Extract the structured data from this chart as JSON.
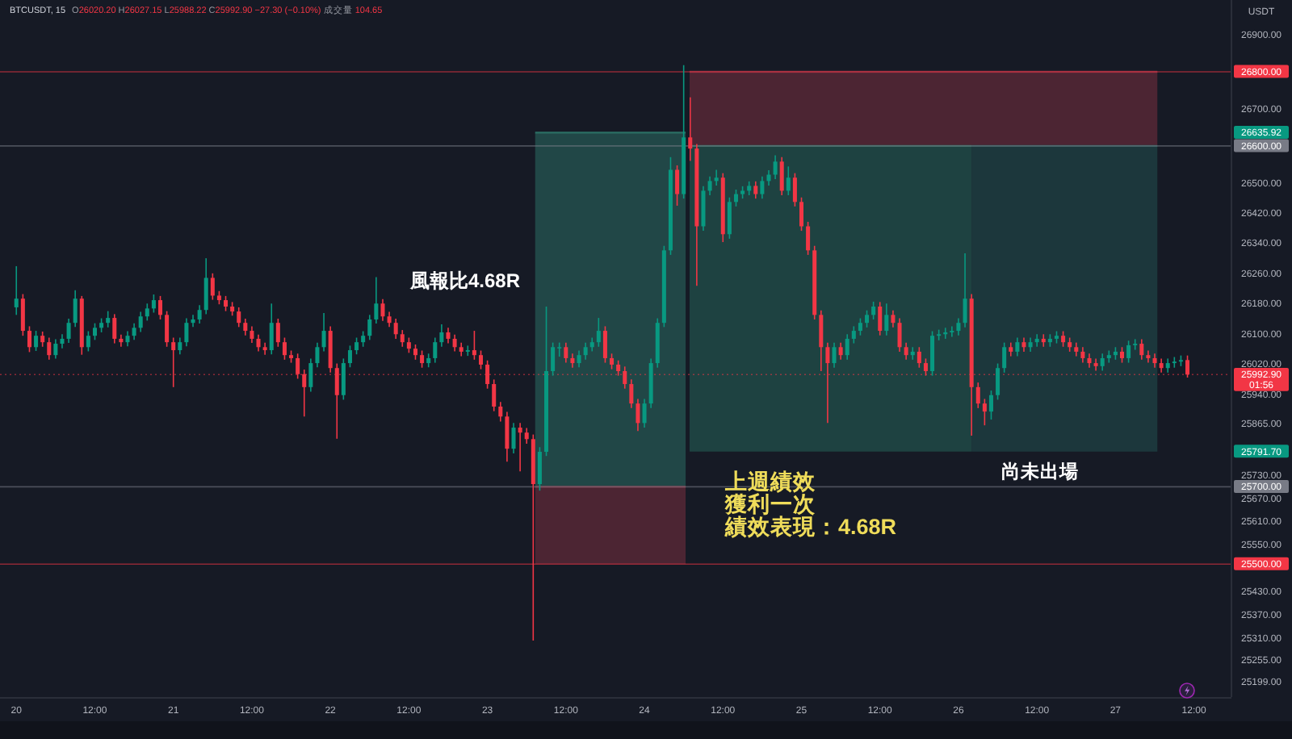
{
  "chart_data": {
    "type": "candlestick",
    "title": "BTCUSDT, 15",
    "subtitle": "O26020.20 H26027.15 L25988.22 C25992.90 −27.30 (−0.10%) 成交量 104.65",
    "ylabel": "USDT",
    "log": true,
    "xlim": [
      "--09-19T21:30",
      "--09-27T17:36"
    ],
    "xticks": [
      {
        "value": "--09-20T00:00",
        "label": "20"
      },
      {
        "value": "--09-20T12:00",
        "label": "12:00"
      },
      {
        "value": "--09-21T00:00",
        "label": "21"
      },
      {
        "value": "--09-21T12:00",
        "label": "12:00"
      },
      {
        "value": "--09-22T00:00",
        "label": "22"
      },
      {
        "value": "--09-22T12:00",
        "label": "12:00"
      },
      {
        "value": "--09-23T00:00",
        "label": "23"
      },
      {
        "value": "--09-23T12:00",
        "label": "12:00"
      },
      {
        "value": "--09-24T00:00",
        "label": "24"
      },
      {
        "value": "--09-24T12:00",
        "label": "12:00"
      },
      {
        "value": "--09-25T00:00",
        "label": "25"
      },
      {
        "value": "--09-25T12:00",
        "label": "12:00"
      },
      {
        "value": "--09-26T00:00",
        "label": "26"
      },
      {
        "value": "--09-26T12:00",
        "label": "12:00"
      },
      {
        "value": "--09-27T00:00",
        "label": "27"
      },
      {
        "value": "--09-27T12:00",
        "label": "12:00"
      }
    ],
    "ylim": [
      25160,
      26995
    ],
    "yticks": [
      {
        "value": 26900,
        "label": "26900.00"
      },
      {
        "value": 26700,
        "label": "26700.00"
      },
      {
        "value": 26500,
        "label": "26500.00"
      },
      {
        "value": 26420,
        "label": "26420.00"
      },
      {
        "value": 26340,
        "label": "26340.00"
      },
      {
        "value": 26260,
        "label": "26260.00"
      },
      {
        "value": 26180,
        "label": "26180.00"
      },
      {
        "value": 26100,
        "label": "26100.00"
      },
      {
        "value": 26020,
        "label": "26020.00"
      },
      {
        "value": 25940,
        "label": "25940.00"
      },
      {
        "value": 25865,
        "label": "25865.00"
      },
      {
        "value": 25730,
        "label": "25730.00"
      },
      {
        "value": 25670,
        "label": "25670.00"
      },
      {
        "value": 25610,
        "label": "25610.00"
      },
      {
        "value": 25550,
        "label": "25550.00"
      },
      {
        "value": 25430,
        "label": "25430.00"
      },
      {
        "value": 25370,
        "label": "25370.00"
      },
      {
        "value": 25310,
        "label": "25310.00"
      },
      {
        "value": 25255,
        "label": "25255.00"
      },
      {
        "value": 25199,
        "label": "25199.00"
      }
    ],
    "series": [
      {
        "type": "line",
        "x": [
          "--09-23T07:18",
          "--09-24T06:18"
        ],
        "values": [
          26635.92,
          26635.92
        ],
        "lower": [
          25700,
          25700
        ],
        "upper": [
          26635.92,
          26635.92
        ],
        "color": "#2b6e64"
      },
      {
        "type": "line",
        "x": [
          "--09-23T07:18",
          "--09-24T06:18"
        ],
        "values": [
          25700,
          25700
        ],
        "lower": [
          25500,
          25500
        ],
        "upper": [
          25700,
          25700
        ],
        "color": "#7a2f40"
      },
      {
        "type": "line",
        "x": [
          "--09-24T06:54",
          "--09-27T06:24"
        ],
        "values": [
          26800,
          26800
        ],
        "lower": [
          26600,
          26600
        ],
        "upper": [
          26800,
          26800
        ],
        "color": "#7a2f40"
      },
      {
        "type": "line",
        "x": [
          "--09-24T06:54",
          "--09-26T02:00"
        ],
        "values": [
          26600,
          26600
        ],
        "lower": [
          25791.7,
          25791.7
        ],
        "upper": [
          26600,
          26600
        ],
        "color": "#276459"
      },
      {
        "type": "line",
        "x": [
          "--09-26T02:00",
          "--09-27T06:24"
        ],
        "values": [
          26600,
          26600
        ],
        "lower": [
          25791.7,
          25791.7
        ],
        "upper": [
          26600,
          26600
        ],
        "color": "#225150"
      },
      {
        "type": "candlestick",
        "x": [
          "--09-20T00:00",
          "--09-20T01:00",
          "--09-20T02:00",
          "--09-20T03:00",
          "--09-20T04:00",
          "--09-20T05:00",
          "--09-20T06:00",
          "--09-20T07:00",
          "--09-20T08:00",
          "--09-20T09:00",
          "--09-20T10:00",
          "--09-20T11:00",
          "--09-20T12:00",
          "--09-20T13:00",
          "--09-20T14:00",
          "--09-20T15:00",
          "--09-20T16:00",
          "--09-20T17:00",
          "--09-20T18:00",
          "--09-20T19:00",
          "--09-20T20:00",
          "--09-20T21:00",
          "--09-20T22:00",
          "--09-20T23:00",
          "--09-21T00:00",
          "--09-21T01:00",
          "--09-21T02:00",
          "--09-21T03:00",
          "--09-21T04:00",
          "--09-21T05:00",
          "--09-21T06:00",
          "--09-21T07:00",
          "--09-21T08:00",
          "--09-21T09:00",
          "--09-21T10:00",
          "--09-21T11:00",
          "--09-21T12:00",
          "--09-21T13:00",
          "--09-21T14:00",
          "--09-21T15:00",
          "--09-21T16:00",
          "--09-21T17:00",
          "--09-21T18:00",
          "--09-21T19:00",
          "--09-21T20:00",
          "--09-21T21:00",
          "--09-21T22:00",
          "--09-21T23:00",
          "--09-22T00:00",
          "--09-22T01:00",
          "--09-22T02:00",
          "--09-22T03:00",
          "--09-22T04:00",
          "--09-22T05:00",
          "--09-22T06:00",
          "--09-22T07:00",
          "--09-22T08:00",
          "--09-22T09:00",
          "--09-22T10:00",
          "--09-22T11:00",
          "--09-22T12:00",
          "--09-22T13:00",
          "--09-22T14:00",
          "--09-22T15:00",
          "--09-22T16:00",
          "--09-22T17:00",
          "--09-22T18:00",
          "--09-22T19:00",
          "--09-22T20:00",
          "--09-22T21:00",
          "--09-22T22:00",
          "--09-22T23:00",
          "--09-23T00:00",
          "--09-23T01:00",
          "--09-23T02:00",
          "--09-23T03:00",
          "--09-23T04:00",
          "--09-23T05:00",
          "--09-23T06:00",
          "--09-23T07:00",
          "--09-23T08:00",
          "--09-23T09:00",
          "--09-23T10:00",
          "--09-23T11:00",
          "--09-23T12:00",
          "--09-23T13:00",
          "--09-23T14:00",
          "--09-23T15:00",
          "--09-23T16:00",
          "--09-23T17:00",
          "--09-23T18:00",
          "--09-23T19:00",
          "--09-23T20:00",
          "--09-23T21:00",
          "--09-23T22:00",
          "--09-23T23:00",
          "--09-24T00:00",
          "--09-24T01:00",
          "--09-24T02:00",
          "--09-24T03:00",
          "--09-24T04:00",
          "--09-24T05:00",
          "--09-24T06:00",
          "--09-24T07:00",
          "--09-24T08:00",
          "--09-24T09:00",
          "--09-24T10:00",
          "--09-24T11:00",
          "--09-24T12:00",
          "--09-24T13:00",
          "--09-24T14:00",
          "--09-24T15:00",
          "--09-24T16:00",
          "--09-24T17:00",
          "--09-24T18:00",
          "--09-24T19:00",
          "--09-24T20:00",
          "--09-24T21:00",
          "--09-24T22:00",
          "--09-24T23:00",
          "--09-25T00:00",
          "--09-25T01:00",
          "--09-25T02:00",
          "--09-25T03:00",
          "--09-25T04:00",
          "--09-25T05:00",
          "--09-25T06:00",
          "--09-25T07:00",
          "--09-25T08:00",
          "--09-25T09:00",
          "--09-25T10:00",
          "--09-25T11:00",
          "--09-25T12:00",
          "--09-25T13:00",
          "--09-25T14:00",
          "--09-25T15:00",
          "--09-25T16:00",
          "--09-25T17:00",
          "--09-25T18:00",
          "--09-25T19:00",
          "--09-25T20:00",
          "--09-25T21:00",
          "--09-25T22:00",
          "--09-25T23:00",
          "--09-26T00:00",
          "--09-26T01:00",
          "--09-26T02:00",
          "--09-26T03:00",
          "--09-26T04:00",
          "--09-26T05:00",
          "--09-26T06:00",
          "--09-26T07:00",
          "--09-26T08:00",
          "--09-26T09:00",
          "--09-26T10:00",
          "--09-26T11:00",
          "--09-26T12:00",
          "--09-26T13:00",
          "--09-26T14:00",
          "--09-26T15:00",
          "--09-26T16:00",
          "--09-26T17:00",
          "--09-26T18:00",
          "--09-26T19:00",
          "--09-26T20:00",
          "--09-26T21:00",
          "--09-26T22:00",
          "--09-26T23:00",
          "--09-27T00:00",
          "--09-27T01:00",
          "--09-27T02:00",
          "--09-27T03:00",
          "--09-27T04:00",
          "--09-27T05:00",
          "--09-27T06:00",
          "--09-27T07:00",
          "--09-27T08:00",
          "--09-27T09:00",
          "--09-27T10:00",
          "--09-27T11:00"
        ],
        "ohlc": [
          [
            26170,
            26279,
            26150,
            26193
          ],
          [
            26193,
            26205,
            26095,
            26108
          ],
          [
            26108,
            26120,
            26052,
            26065
          ],
          [
            26065,
            26108,
            26055,
            26095
          ],
          [
            26095,
            26106,
            26066,
            26078
          ],
          [
            26078,
            26090,
            26032,
            26044
          ],
          [
            26044,
            26086,
            26035,
            26074
          ],
          [
            26074,
            26099,
            26062,
            26087
          ],
          [
            26087,
            26140,
            26076,
            26129
          ],
          [
            26129,
            26215,
            26118,
            26193
          ],
          [
            26193,
            26200,
            26045,
            26065
          ],
          [
            26065,
            26107,
            26054,
            26095
          ],
          [
            26095,
            26128,
            26084,
            26116
          ],
          [
            26116,
            26141,
            26104,
            26129
          ],
          [
            26129,
            26160,
            26117,
            26142
          ],
          [
            26142,
            26152,
            26075,
            26087
          ],
          [
            26087,
            26098,
            26066,
            26078
          ],
          [
            26078,
            26107,
            26067,
            26095
          ],
          [
            26095,
            26128,
            26084,
            26116
          ],
          [
            26116,
            26158,
            26105,
            26146
          ],
          [
            26146,
            26180,
            26135,
            26167
          ],
          [
            26167,
            26204,
            26156,
            26189
          ],
          [
            26189,
            26200,
            26138,
            26150
          ],
          [
            26150,
            26160,
            26066,
            26078
          ],
          [
            26078,
            26090,
            25960,
            26057
          ],
          [
            26057,
            26090,
            26046,
            26078
          ],
          [
            26078,
            26141,
            26067,
            26129
          ],
          [
            26129,
            26150,
            26118,
            26138
          ],
          [
            26138,
            26176,
            26127,
            26163
          ],
          [
            26163,
            26300,
            26152,
            26248
          ],
          [
            26248,
            26260,
            26190,
            26201
          ],
          [
            26201,
            26213,
            26178,
            26189
          ],
          [
            26189,
            26200,
            26160,
            26172
          ],
          [
            26172,
            26184,
            26148,
            26159
          ],
          [
            26159,
            26170,
            26118,
            26129
          ],
          [
            26129,
            26140,
            26096,
            26108
          ],
          [
            26108,
            26120,
            26076,
            26087
          ],
          [
            26087,
            26098,
            26054,
            26065
          ],
          [
            26065,
            26077,
            26045,
            26057
          ],
          [
            26057,
            26180,
            26046,
            26129
          ],
          [
            26129,
            26140,
            26066,
            26078
          ],
          [
            26078,
            26090,
            26032,
            26044
          ],
          [
            26044,
            26056,
            26024,
            26036
          ],
          [
            26036,
            26048,
            25982,
            25994
          ],
          [
            25994,
            26006,
            25883,
            25960
          ],
          [
            25960,
            26035,
            25948,
            26023
          ],
          [
            26023,
            26077,
            26012,
            26065
          ],
          [
            26065,
            26155,
            26054,
            26108
          ],
          [
            26108,
            26120,
            25998,
            26010
          ],
          [
            26010,
            26022,
            25825,
            25939
          ],
          [
            25939,
            26035,
            25927,
            26023
          ],
          [
            26023,
            26069,
            26012,
            26057
          ],
          [
            26057,
            26090,
            26046,
            26078
          ],
          [
            26078,
            26107,
            26066,
            26095
          ],
          [
            26095,
            26150,
            26084,
            26138
          ],
          [
            26138,
            26250,
            26127,
            26180
          ],
          [
            26180,
            26192,
            26134,
            26146
          ],
          [
            26146,
            26158,
            26118,
            26129
          ],
          [
            26129,
            26140,
            26087,
            26099
          ],
          [
            26099,
            26110,
            26066,
            26078
          ],
          [
            26078,
            26090,
            26050,
            26061
          ],
          [
            26061,
            26072,
            26032,
            26044
          ],
          [
            26044,
            26056,
            26011,
            26023
          ],
          [
            26023,
            26048,
            26012,
            26036
          ],
          [
            26036,
            26090,
            26024,
            26078
          ],
          [
            26078,
            26125,
            26066,
            26104
          ],
          [
            26104,
            26116,
            26075,
            26087
          ],
          [
            26087,
            26098,
            26054,
            26065
          ],
          [
            26065,
            26077,
            26041,
            26053
          ],
          [
            26053,
            26069,
            26042,
            26057
          ],
          [
            26057,
            26108,
            26032,
            26044
          ],
          [
            26044,
            26056,
            26007,
            26019
          ],
          [
            26019,
            26030,
            25956,
            25968
          ],
          [
            25968,
            25980,
            25897,
            25909
          ],
          [
            25909,
            25921,
            25870,
            25883
          ],
          [
            25883,
            25895,
            25765,
            25799
          ],
          [
            25799,
            25866,
            25787,
            25854
          ],
          [
            25854,
            25866,
            25740,
            25841
          ],
          [
            25841,
            25853,
            25812,
            25824
          ],
          [
            25824,
            25836,
            25304,
            25707
          ],
          [
            25707,
            25803,
            25690,
            25791
          ],
          [
            25791,
            26172,
            25780,
            26002
          ],
          [
            26002,
            26077,
            25990,
            26065
          ],
          [
            26065,
            26077,
            26040,
            26065
          ],
          [
            26065,
            26077,
            26024,
            26036
          ],
          [
            26036,
            26048,
            26011,
            26023
          ],
          [
            26023,
            26056,
            26012,
            26044
          ],
          [
            26044,
            26077,
            26032,
            26065
          ],
          [
            26065,
            26090,
            26054,
            26078
          ],
          [
            26078,
            26142,
            26066,
            26108
          ],
          [
            26108,
            26120,
            26024,
            26036
          ],
          [
            26036,
            26048,
            26007,
            26019
          ],
          [
            26019,
            26030,
            25990,
            26002
          ],
          [
            26002,
            26014,
            25956,
            25968
          ],
          [
            25968,
            25980,
            25905,
            25917
          ],
          [
            25917,
            25929,
            25845,
            25866
          ],
          [
            25866,
            25929,
            25854,
            25917
          ],
          [
            25917,
            26035,
            25905,
            26023
          ],
          [
            26023,
            26141,
            26011,
            26129
          ],
          [
            26129,
            26333,
            26118,
            26321
          ],
          [
            26321,
            26570,
            26309,
            26536
          ],
          [
            26536,
            26548,
            26440,
            26471
          ],
          [
            26471,
            26818,
            26459,
            26623
          ],
          [
            26623,
            26731,
            26560,
            26593
          ],
          [
            26593,
            26605,
            26227,
            26385
          ],
          [
            26385,
            26492,
            26373,
            26480
          ],
          [
            26480,
            26518,
            26468,
            26506
          ],
          [
            26506,
            26536,
            26494,
            26515
          ],
          [
            26515,
            26527,
            26343,
            26364
          ],
          [
            26364,
            26462,
            26352,
            26450
          ],
          [
            26450,
            26483,
            26438,
            26471
          ],
          [
            26471,
            26492,
            26459,
            26480
          ],
          [
            26480,
            26505,
            26468,
            26493
          ],
          [
            26493,
            26505,
            26459,
            26471
          ],
          [
            26471,
            26518,
            26459,
            26506
          ],
          [
            26506,
            26535,
            26494,
            26523
          ],
          [
            26523,
            26575,
            26511,
            26558
          ],
          [
            26558,
            26570,
            26468,
            26480
          ],
          [
            26480,
            26545,
            26468,
            26515
          ],
          [
            26515,
            26527,
            26438,
            26450
          ],
          [
            26450,
            26462,
            26373,
            26385
          ],
          [
            26385,
            26397,
            26309,
            26321
          ],
          [
            26321,
            26333,
            26138,
            26150
          ],
          [
            26150,
            26162,
            26002,
            26065
          ],
          [
            26065,
            26077,
            25866,
            26023
          ],
          [
            26023,
            26077,
            26011,
            26065
          ],
          [
            26065,
            26077,
            26032,
            26044
          ],
          [
            26044,
            26099,
            26032,
            26087
          ],
          [
            26087,
            26120,
            26075,
            26108
          ],
          [
            26108,
            26141,
            26096,
            26129
          ],
          [
            26129,
            26162,
            26117,
            26150
          ],
          [
            26150,
            26185,
            26138,
            26172
          ],
          [
            26172,
            26184,
            26096,
            26108
          ],
          [
            26108,
            26180,
            26096,
            26150
          ],
          [
            26150,
            26162,
            26117,
            26129
          ],
          [
            26129,
            26141,
            26053,
            26065
          ],
          [
            26065,
            26077,
            26032,
            26044
          ],
          [
            26044,
            26065,
            26032,
            26053
          ],
          [
            26053,
            26065,
            26011,
            26023
          ],
          [
            26023,
            26035,
            25990,
            26002
          ],
          [
            26002,
            26107,
            25990,
            26095
          ],
          [
            26095,
            26111,
            26083,
            26099
          ],
          [
            26099,
            26116,
            26087,
            26104
          ],
          [
            26104,
            26120,
            26092,
            26108
          ],
          [
            26108,
            26141,
            26096,
            26129
          ],
          [
            26129,
            26313,
            26117,
            26193
          ],
          [
            26193,
            26205,
            25833,
            25960
          ],
          [
            25960,
            25972,
            25905,
            25917
          ],
          [
            25917,
            25929,
            25860,
            25896
          ],
          [
            25896,
            25951,
            25875,
            25939
          ],
          [
            25939,
            26022,
            25927,
            26010
          ],
          [
            26010,
            26077,
            25998,
            26065
          ],
          [
            26065,
            26077,
            26041,
            26053
          ],
          [
            26053,
            26090,
            26041,
            26078
          ],
          [
            26078,
            26090,
            26053,
            26065
          ],
          [
            26065,
            26090,
            26053,
            26078
          ],
          [
            26078,
            26099,
            26066,
            26087
          ],
          [
            26087,
            26099,
            26066,
            26078
          ],
          [
            26078,
            26099,
            26066,
            26087
          ],
          [
            26087,
            26107,
            26075,
            26095
          ],
          [
            26095,
            26107,
            26066,
            26078
          ],
          [
            26078,
            26090,
            26053,
            26065
          ],
          [
            26065,
            26077,
            26041,
            26053
          ],
          [
            26053,
            26065,
            26024,
            26036
          ],
          [
            26036,
            26048,
            26011,
            26023
          ],
          [
            26023,
            26035,
            26003,
            26015
          ],
          [
            26015,
            26048,
            26003,
            26036
          ],
          [
            26036,
            26056,
            26024,
            26044
          ],
          [
            26044,
            26065,
            26032,
            26053
          ],
          [
            26053,
            26065,
            26024,
            26036
          ],
          [
            26036,
            26082,
            26024,
            26070
          ],
          [
            26070,
            26086,
            26058,
            26074
          ],
          [
            26074,
            26086,
            26032,
            26044
          ],
          [
            26044,
            26056,
            26024,
            26036
          ],
          [
            26036,
            26048,
            26011,
            26023
          ],
          [
            26023,
            26035,
            25998,
            26010
          ],
          [
            26010,
            26035,
            25998,
            26023
          ],
          [
            26023,
            26039,
            26011,
            26027
          ],
          [
            26027,
            26043,
            26015,
            26031
          ],
          [
            26031,
            26043,
            25985,
            25992.9
          ]
        ]
      }
    ],
    "ref_lines": [
      {
        "axis": "y",
        "value": 26800,
        "label": "26800.00",
        "color": "#f23645"
      },
      {
        "axis": "y",
        "value": 26600,
        "label": "26600.00",
        "color": "#787b86"
      },
      {
        "axis": "y",
        "value": 25700,
        "label": "25700.00",
        "color": "#787b86"
      },
      {
        "axis": "y",
        "value": 25500,
        "label": "25500.00",
        "color": "#f23645"
      },
      {
        "axis": "y",
        "value": 25992.9,
        "label": "25992.90\n01:56",
        "color": "#f23645",
        "line_style": "dotted"
      }
    ],
    "annotations": [
      "風報比4.68R",
      "上週績效",
      "獲利一次",
      "績效表現：4.68R",
      "尚未出場",
      "26635.92",
      "25791.70"
    ]
  }
}
